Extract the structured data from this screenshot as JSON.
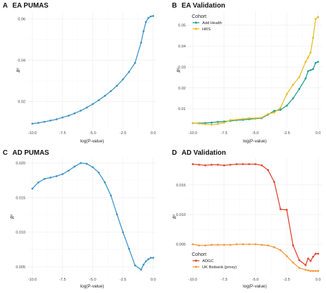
{
  "chart_data": [
    {
      "type": "line",
      "panel_letter": "A",
      "title": "EA PUMAS",
      "xlabel": "log(P-value)",
      "ylabel": "R²",
      "xlim": [
        -10.4,
        0.3
      ],
      "ylim": [
        0.0068,
        0.0635
      ],
      "xticks": [
        -10.0,
        -7.5,
        -5.0,
        -2.5,
        0.0
      ],
      "xtick_labels": [
        "-10.0",
        "-7.5",
        "-5.0",
        "-2.5",
        "0.0"
      ],
      "yticks": [
        0.02,
        0.04,
        0.06
      ],
      "ytick_labels": [
        "0.02",
        "0.04",
        "0.06"
      ],
      "legend": null,
      "series": [
        {
          "name": "",
          "color": "#3d93c6",
          "x": [
            -10,
            -9.5,
            -9,
            -8.5,
            -8,
            -7.5,
            -7,
            -6.5,
            -6,
            -5.5,
            -5,
            -4.5,
            -4,
            -3.5,
            -3,
            -2.5,
            -2,
            -1.5,
            -1,
            -0.8,
            -0.6,
            -0.4,
            -0.2,
            0
          ],
          "y": [
            0.0092,
            0.0096,
            0.0101,
            0.0107,
            0.0113,
            0.0122,
            0.0131,
            0.0142,
            0.0155,
            0.017,
            0.0187,
            0.0206,
            0.0227,
            0.025,
            0.0276,
            0.0307,
            0.0343,
            0.0387,
            0.0485,
            0.054,
            0.0585,
            0.0605,
            0.0612,
            0.0614
          ]
        }
      ]
    },
    {
      "type": "line",
      "panel_letter": "B",
      "title": "EA Validation",
      "xlabel": "log(P-value)",
      "ylabel": "R²",
      "xlim": [
        -10.4,
        0.3
      ],
      "ylim": [
        0.0005,
        0.0565
      ],
      "xticks": [
        -10.0,
        -7.5,
        -5.0,
        -2.5,
        0.0
      ],
      "xtick_labels": [
        "-10.0",
        "-7.5",
        "-5.0",
        "-2.5",
        "0.0"
      ],
      "yticks": [
        0.01,
        0.02,
        0.03,
        0.04,
        0.05
      ],
      "ytick_labels": [
        "0.01",
        "0.02",
        "0.03",
        "0.04",
        "0.05"
      ],
      "legend": {
        "title": "Cohort",
        "position": "top-left"
      },
      "series": [
        {
          "name": "Add Health",
          "color": "#1f9e89",
          "x": [
            -10,
            -9.5,
            -9,
            -8.5,
            -8,
            -7.5,
            -7,
            -6.5,
            -6,
            -5.5,
            -5,
            -4.5,
            -4,
            -3.5,
            -3,
            -2.5,
            -2,
            -1.5,
            -1,
            -0.8,
            -0.6,
            -0.4,
            -0.2,
            0
          ],
          "y": [
            0.0031,
            0.0031,
            0.0032,
            0.0034,
            0.0037,
            0.0039,
            0.0042,
            0.0045,
            0.0047,
            0.005,
            0.0053,
            0.0055,
            0.0072,
            0.009,
            0.0095,
            0.0115,
            0.015,
            0.0195,
            0.0245,
            0.028,
            0.0285,
            0.029,
            0.032,
            0.0325
          ]
        },
        {
          "name": "HRS",
          "color": "#e5bd29",
          "x": [
            -10,
            -9.5,
            -9,
            -8.5,
            -8,
            -7.5,
            -7,
            -6.5,
            -6,
            -5.5,
            -5,
            -4.5,
            -4,
            -3.5,
            -3,
            -2.5,
            -2,
            -1.5,
            -1,
            -0.8,
            -0.6,
            -0.4,
            -0.2,
            0
          ],
          "y": [
            0.0031,
            0.0029,
            0.0026,
            0.0024,
            0.0027,
            0.0033,
            0.0046,
            0.0048,
            0.0052,
            0.0055,
            0.0055,
            0.0058,
            0.0075,
            0.0082,
            0.0105,
            0.017,
            0.0215,
            0.0252,
            0.0325,
            0.0345,
            0.037,
            0.044,
            0.053,
            0.054
          ]
        }
      ]
    },
    {
      "type": "line",
      "panel_letter": "C",
      "title": "AD PUMAS",
      "xlabel": "log(P-value)",
      "ylabel": "R²",
      "xlim": [
        -10.4,
        0.3
      ],
      "ylim": [
        0.0038,
        0.0207
      ],
      "xticks": [
        -10.0,
        -7.5,
        -5.0,
        -2.5,
        0.0
      ],
      "xtick_labels": [
        "-10.0",
        "-7.5",
        "-5.0",
        "-2.5",
        "0.0"
      ],
      "yticks": [
        0.005,
        0.01,
        0.015,
        0.02
      ],
      "ytick_labels": [
        "0.005",
        "0.010",
        "0.015",
        "0.020"
      ],
      "legend": null,
      "series": [
        {
          "name": "",
          "color": "#3d93c6",
          "x": [
            -10,
            -9.5,
            -9,
            -8.5,
            -8,
            -7.5,
            -7,
            -6.5,
            -6,
            -5.5,
            -5,
            -4.5,
            -4,
            -3.5,
            -3,
            -2.5,
            -2,
            -1.5,
            -1,
            -0.8,
            -0.6,
            -0.4,
            -0.2,
            0
          ],
          "y": [
            0.0163,
            0.0172,
            0.0177,
            0.0179,
            0.0181,
            0.0184,
            0.0189,
            0.0195,
            0.02,
            0.0199,
            0.0194,
            0.0186,
            0.0172,
            0.0153,
            0.0126,
            0.01,
            0.0076,
            0.0052,
            0.0046,
            0.0053,
            0.0058,
            0.0061,
            0.0063,
            0.0063
          ]
        }
      ]
    },
    {
      "type": "line",
      "panel_letter": "D",
      "title": "AD Validation",
      "xlabel": "log(P-value)",
      "ylabel": "R²",
      "xlim": [
        -10.4,
        0.3
      ],
      "ylim": [
        -0.0002,
        0.0195
      ],
      "xticks": [
        -10.0,
        -7.5,
        -5.0,
        -2.5,
        0.0
      ],
      "xtick_labels": [
        "-10.0",
        "-7.5",
        "-5.0",
        "-2.5",
        "0.0"
      ],
      "yticks": [
        0.005,
        0.01,
        0.015
      ],
      "ytick_labels": [
        "0.005",
        "0.010",
        "0.015"
      ],
      "legend": {
        "title": "Cohort",
        "position": "bottom-left"
      },
      "series": [
        {
          "name": "ADGC",
          "color": "#e2432e",
          "x": [
            -10,
            -9.5,
            -9,
            -8.5,
            -8,
            -7.5,
            -7,
            -6.5,
            -6,
            -5.5,
            -5,
            -4.5,
            -4,
            -3.5,
            -3,
            -2.5,
            -2,
            -1.5,
            -1,
            -0.8,
            -0.6,
            -0.4,
            -0.2,
            0
          ],
          "y": [
            0.0185,
            0.0184,
            0.0183,
            0.0184,
            0.0184,
            0.0183,
            0.0184,
            0.0185,
            0.0185,
            0.0185,
            0.0185,
            0.0183,
            0.0175,
            0.0155,
            0.0109,
            0.0108,
            0.0048,
            0.0023,
            0.0015,
            0.0026,
            0.0022,
            0.0029,
            0.0034,
            0.0034
          ]
        },
        {
          "name": "UK Biobank (proxy)",
          "color": "#f39a3c",
          "x": [
            -10,
            -9.5,
            -9,
            -8.5,
            -8,
            -7.5,
            -7,
            -6.5,
            -6,
            -5.5,
            -5,
            -4.5,
            -4,
            -3.5,
            -3,
            -2.5,
            -2,
            -1.5,
            -1,
            -0.8,
            -0.6,
            -0.4,
            -0.2,
            0
          ],
          "y": [
            0.005,
            0.0048,
            0.0048,
            0.0049,
            0.0049,
            0.0049,
            0.0049,
            0.005,
            0.005,
            0.005,
            0.005,
            0.0049,
            0.0048,
            0.0045,
            0.004,
            0.003,
            0.0019,
            0.001,
            0.0007,
            0.0006,
            0.0005,
            0.0005,
            0.0005,
            0.0005
          ]
        }
      ]
    }
  ]
}
